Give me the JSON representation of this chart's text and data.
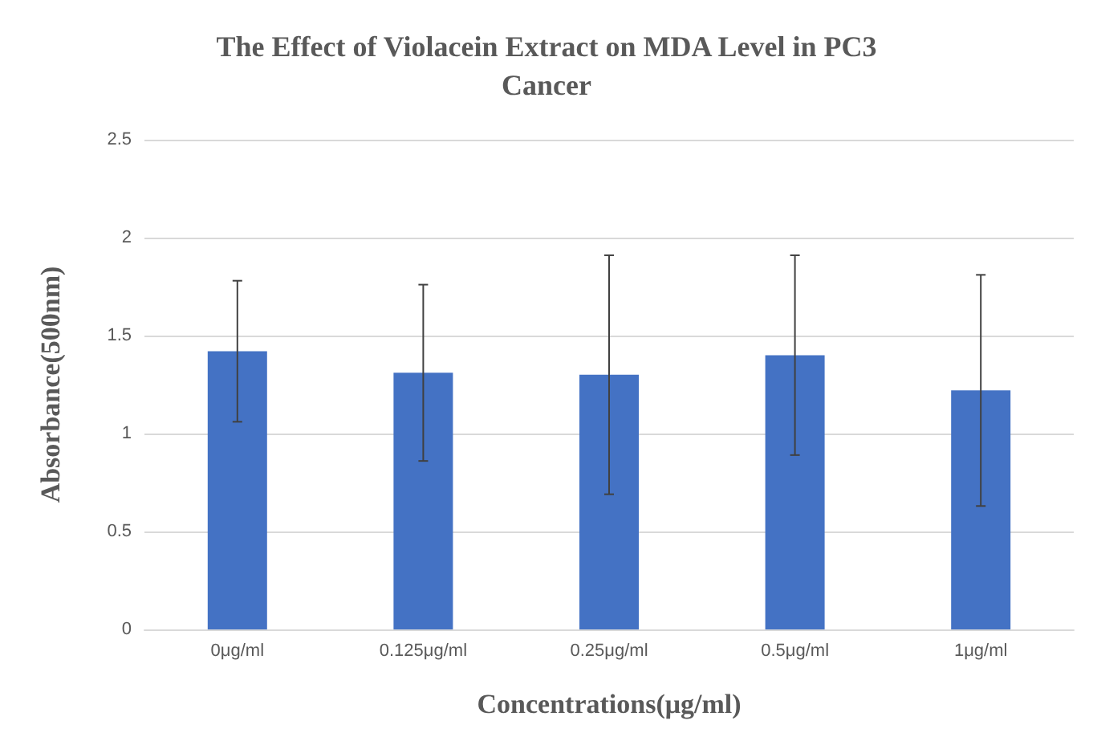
{
  "chart_data": {
    "type": "bar",
    "title": "The Effect of Violacein Extract on MDA Level in PC3\nCancer",
    "xlabel": "Concentrations(μg/ml)",
    "ylabel": "Absorbance(500nm)",
    "categories": [
      "0μg/ml",
      "0.125μg/ml",
      "0.25μg/ml",
      "0.5μg/ml",
      "1μg/ml"
    ],
    "values": [
      1.42,
      1.31,
      1.3,
      1.4,
      1.22
    ],
    "errors": [
      0.36,
      0.45,
      0.61,
      0.51,
      0.59
    ],
    "color": "#4472c4",
    "ylim": [
      0,
      2.5
    ],
    "yticks": [
      0,
      0.5,
      1,
      1.5,
      2,
      2.5
    ],
    "grid": "y"
  }
}
